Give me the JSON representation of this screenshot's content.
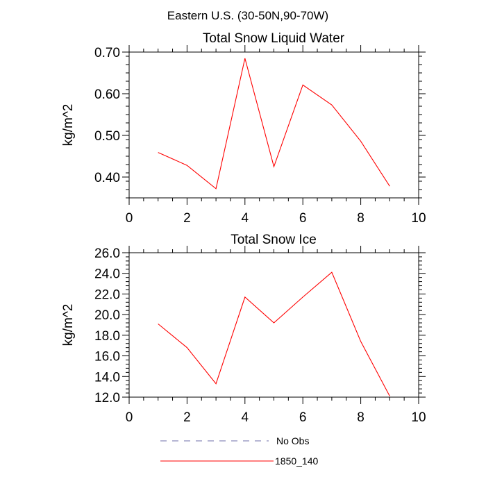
{
  "figure_title": "Eastern U.S. (30-50N,90-70W)",
  "legend": [
    {
      "label": "No Obs",
      "color": "#6e6ea8",
      "dash": true
    },
    {
      "label": "1850_140",
      "color": "#ff0000",
      "dash": false
    }
  ],
  "chart_data": [
    {
      "type": "line",
      "title": "Total Snow Liquid Water",
      "xlabel": "",
      "ylabel": "kg/m^2",
      "xlim": [
        0,
        10
      ],
      "ylim": [
        0.35,
        0.7
      ],
      "xticks": [
        0,
        2,
        4,
        6,
        8,
        10
      ],
      "xtick_labels": [
        "0",
        "2",
        "4",
        "6",
        "8",
        "10"
      ],
      "yticks": [
        0.4,
        0.5,
        0.6,
        0.7
      ],
      "ytick_labels": [
        "0.40",
        "0.50",
        "0.60",
        "0.70"
      ],
      "x": [
        1,
        2,
        3,
        4,
        5,
        6,
        7,
        8,
        9
      ],
      "series": [
        {
          "name": "1850_140",
          "color": "#ff0000",
          "values": [
            0.459,
            0.428,
            0.372,
            0.685,
            0.425,
            0.621,
            0.573,
            0.486,
            0.378
          ]
        }
      ]
    },
    {
      "type": "line",
      "title": "Total Snow Ice",
      "xlabel": "",
      "ylabel": "kg/m^2",
      "xlim": [
        0,
        10
      ],
      "ylim": [
        12.0,
        26.0
      ],
      "xticks": [
        0,
        2,
        4,
        6,
        8,
        10
      ],
      "xtick_labels": [
        "0",
        "2",
        "4",
        "6",
        "8",
        "10"
      ],
      "yticks": [
        12,
        14,
        16,
        18,
        20,
        22,
        24,
        26
      ],
      "ytick_labels": [
        "12.0",
        "14.0",
        "16.0",
        "18.0",
        "20.0",
        "22.0",
        "24.0",
        "26.0"
      ],
      "x": [
        1,
        2,
        3,
        4,
        5,
        6,
        7,
        8,
        9
      ],
      "series": [
        {
          "name": "1850_140",
          "color": "#ff0000",
          "values": [
            19.1,
            16.8,
            13.3,
            21.7,
            19.2,
            21.7,
            24.1,
            17.4,
            12.1
          ]
        }
      ]
    }
  ]
}
